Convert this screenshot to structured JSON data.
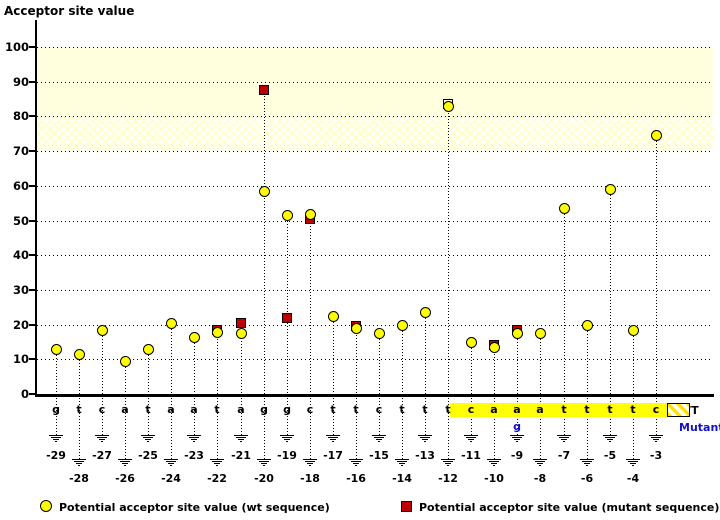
{
  "title": "Acceptor site value",
  "wt_row_label": "WT",
  "mutant_row_label": "Mutant",
  "legend": {
    "wt": "Potential acceptor site value (wt sequence)",
    "mutant": "Potential acceptor site value (mutant sequence)"
  },
  "colors": {
    "wt_marker": "#ffff00",
    "mutant_marker": "#c00000",
    "band": "#ffffdd",
    "highlight_box": "#ffff00",
    "mutant_text": "#1111cc"
  },
  "chart_data": {
    "type": "scatter",
    "title": "Acceptor site value",
    "ylabel": "Acceptor site value",
    "ylim": [
      0,
      107
    ],
    "yticks": [
      0,
      10,
      20,
      30,
      40,
      50,
      60,
      70,
      80,
      90,
      100
    ],
    "grid": "dotted",
    "positions": [
      -29,
      -28,
      -27,
      -26,
      -25,
      -24,
      -23,
      -22,
      -21,
      -20,
      -19,
      -18,
      -17,
      -16,
      -15,
      -14,
      -13,
      -12,
      -11,
      -10,
      -9,
      -8,
      -7,
      -6,
      -5,
      -4,
      -3
    ],
    "wt_sequence": [
      "g",
      "t",
      "c",
      "a",
      "t",
      "a",
      "a",
      "t",
      "a",
      "g",
      "g",
      "c",
      "t",
      "t",
      "c",
      "t",
      "t",
      "t",
      "c",
      "a",
      "a",
      "a",
      "t",
      "t",
      "t",
      "t",
      "c"
    ],
    "mutant_changes": [
      {
        "pos": -9,
        "base": "g"
      }
    ],
    "series": [
      {
        "name": "Potential acceptor site value (wt sequence)",
        "marker": "circle",
        "color": "#ffff00",
        "values": [
          13,
          11.5,
          18.5,
          9.5,
          13,
          20.5,
          16.5,
          18,
          17.5,
          58.5,
          51.5,
          52,
          22.5,
          19,
          17.5,
          20,
          23.5,
          83,
          15,
          13.5,
          17.5,
          17.5,
          53.5,
          20,
          59,
          18.5,
          74.5
        ]
      },
      {
        "name": "Potential acceptor site value (mutant sequence)",
        "marker": "square",
        "color": "#c00000",
        "values": [
          null,
          null,
          null,
          null,
          null,
          null,
          null,
          18.5,
          20.5,
          87.5,
          22,
          50.5,
          null,
          19.5,
          null,
          null,
          null,
          83.5,
          null,
          14,
          18.5,
          null,
          null,
          null,
          null,
          null,
          null
        ]
      }
    ],
    "pale_square_positions": [
      -12
    ],
    "highlight_box": {
      "from": -11,
      "to": -3
    },
    "threshold_bands": [
      {
        "from": 80,
        "to": 100,
        "style": "solid"
      },
      {
        "from": 70,
        "to": 80,
        "style": "hatched"
      }
    ],
    "legend_position": "bottom"
  }
}
